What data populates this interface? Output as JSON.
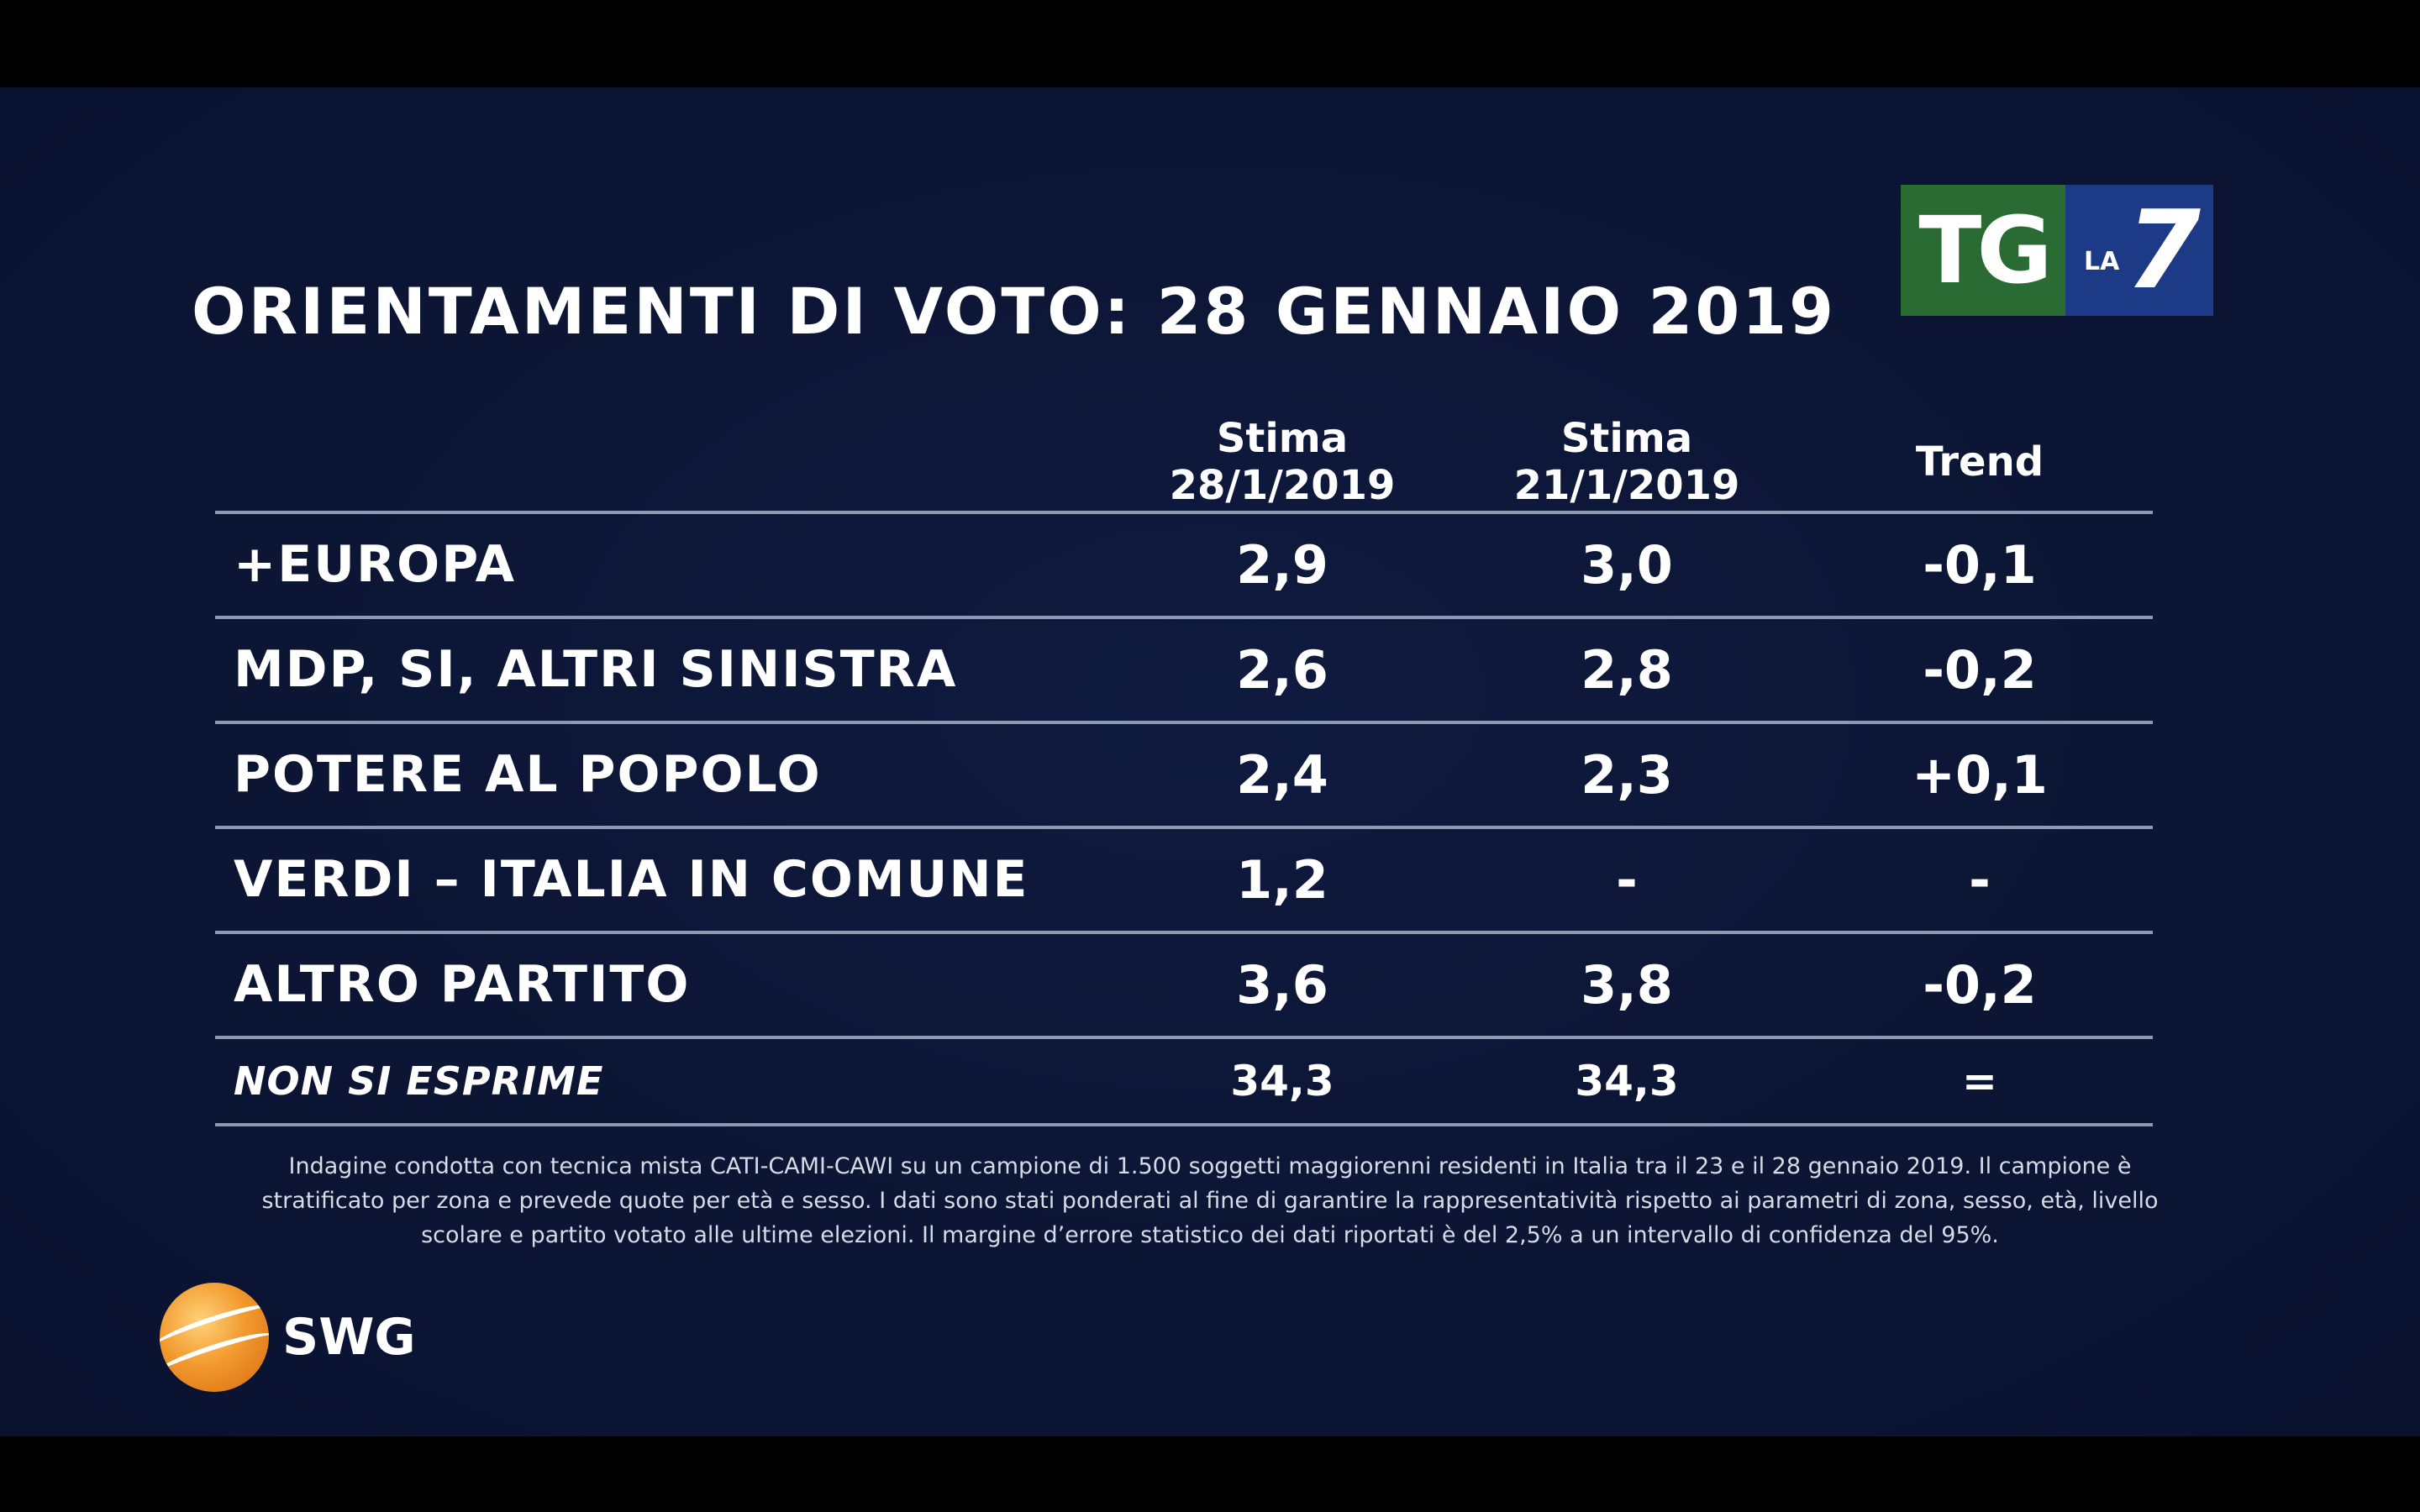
{
  "chart_data": {
    "type": "table",
    "title": "ORIENTAMENTI DI VOTO: 28 GENNAIO 2019",
    "columns": [
      {
        "line1": "",
        "line2": ""
      },
      {
        "line1": "Stima",
        "line2": "28/1/2019"
      },
      {
        "line1": "Stima",
        "line2": "21/1/2019"
      },
      {
        "line1": "Trend",
        "line2": ""
      }
    ],
    "rows": [
      {
        "party": "+EUROPA",
        "stima_28": "2,9",
        "stima_21": "3,0",
        "trend": "-0,1"
      },
      {
        "party": "MDP, SI, ALTRI SINISTRA",
        "stima_28": "2,6",
        "stima_21": "2,8",
        "trend": "-0,2"
      },
      {
        "party": "POTERE AL POPOLO",
        "stima_28": "2,4",
        "stima_21": "2,3",
        "trend": "+0,1"
      },
      {
        "party": "VERDI – ITALIA IN COMUNE",
        "stima_28": "1,2",
        "stima_21": "-",
        "trend": "-"
      },
      {
        "party": "ALTRO PARTITO",
        "stima_28": "3,6",
        "stima_21": "3,8",
        "trend": "-0,2"
      },
      {
        "party": "NON SI ESPRIME",
        "stima_28": "34,3",
        "stima_21": "34,3",
        "trend": "="
      }
    ],
    "note_lines": [
      "Indagine condotta con tecnica mista CATI-CAMI-CAWI su un campione di 1.500 soggetti maggiorenni residenti in Italia tra il 23 e il 28 gennaio 2019. Il campione è",
      "stratificato per zona e prevede quote per età e sesso. I dati sono stati ponderati al fine di garantire la rappresentatività rispetto ai parametri di zona, sesso, età, livello",
      "scolare e partito votato alle ultime elezioni. Il margine d’errore statistico dei dati riportati è del 2,5% a un intervallo di confidenza del 95%."
    ]
  },
  "logos": {
    "broadcaster": {
      "tg": "TG",
      "la": "LA",
      "seven": "7",
      "colors": {
        "green": "#2a6b34",
        "blue": "#1c3a86"
      }
    },
    "pollster": {
      "name": "SWG",
      "icon": "globe-icon"
    }
  },
  "colors": {
    "background": "#0c1534",
    "divider": "#8d98b3",
    "text": "#ffffff"
  }
}
